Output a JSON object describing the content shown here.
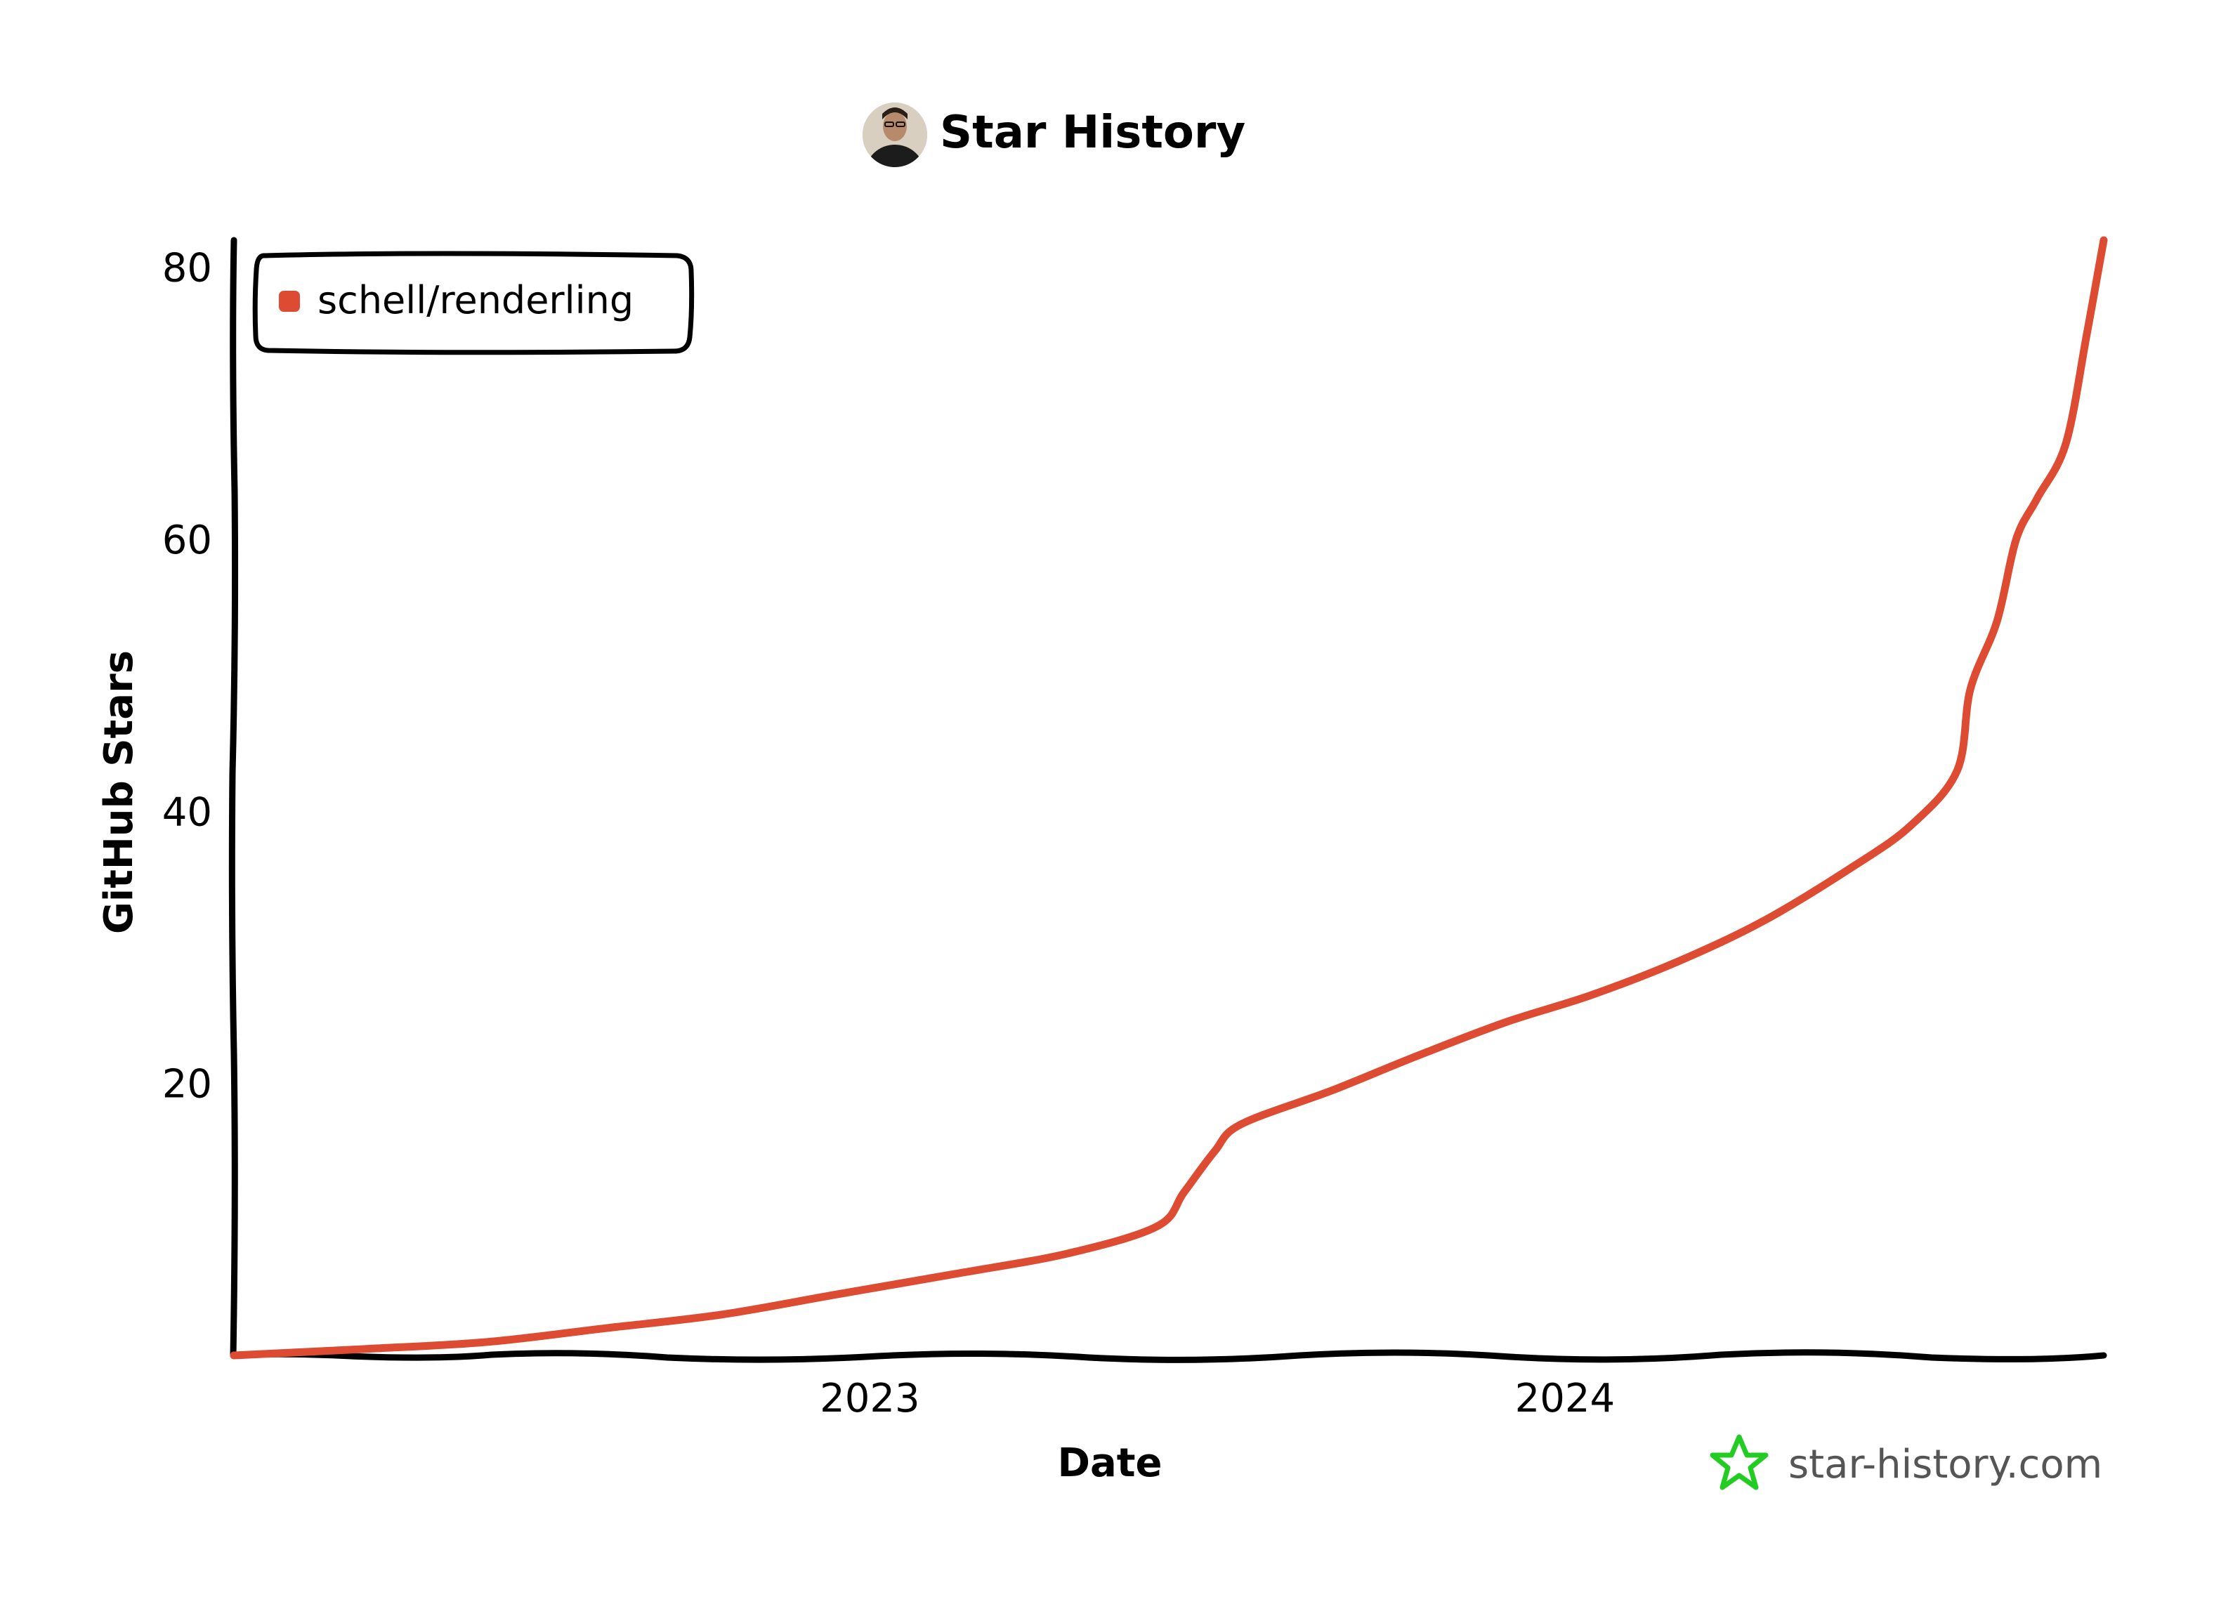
{
  "title": "Star History",
  "watermark": "star-history.com",
  "colors": {
    "series": "#dd4b32",
    "axis": "#000000",
    "watermark_star": "#22cc22",
    "background": "#ffffff"
  },
  "icons": {
    "avatar": "user-avatar-icon",
    "watermark": "star-outline-icon"
  },
  "chart_data": {
    "type": "line",
    "title": "Star History",
    "xlabel": "Date",
    "ylabel": "GitHub Stars",
    "x_ticks": [
      "2023",
      "2024"
    ],
    "y_ticks": [
      20,
      40,
      60,
      80
    ],
    "ylim": [
      0,
      82
    ],
    "xlim": [
      "2022-02-01",
      "2024-10-10"
    ],
    "legend": {
      "position": "top-left",
      "entries": [
        "schell/renderling"
      ]
    },
    "grid": false,
    "series": [
      {
        "name": "schell/renderling",
        "points": [
          [
            "2022-02-01",
            0
          ],
          [
            "2022-04-15",
            0.5
          ],
          [
            "2022-06-15",
            1
          ],
          [
            "2022-08-15",
            2
          ],
          [
            "2022-10-15",
            3
          ],
          [
            "2022-12-15",
            4.5
          ],
          [
            "2023-02-15",
            6
          ],
          [
            "2023-04-15",
            7.5
          ],
          [
            "2023-06-01",
            9.5
          ],
          [
            "2023-06-15",
            12
          ],
          [
            "2023-07-01",
            15
          ],
          [
            "2023-07-15",
            17
          ],
          [
            "2023-09-01",
            19.5
          ],
          [
            "2023-10-15",
            22
          ],
          [
            "2023-12-01",
            24.5
          ],
          [
            "2024-01-15",
            26.5
          ],
          [
            "2024-03-01",
            29
          ],
          [
            "2024-04-15",
            32
          ],
          [
            "2024-06-01",
            36
          ],
          [
            "2024-07-01",
            39
          ],
          [
            "2024-07-25",
            43
          ],
          [
            "2024-08-01",
            49
          ],
          [
            "2024-08-15",
            54
          ],
          [
            "2024-08-25",
            60
          ],
          [
            "2024-09-05",
            63
          ],
          [
            "2024-09-20",
            67
          ],
          [
            "2024-10-01",
            75
          ],
          [
            "2024-10-10",
            82
          ]
        ]
      }
    ]
  }
}
